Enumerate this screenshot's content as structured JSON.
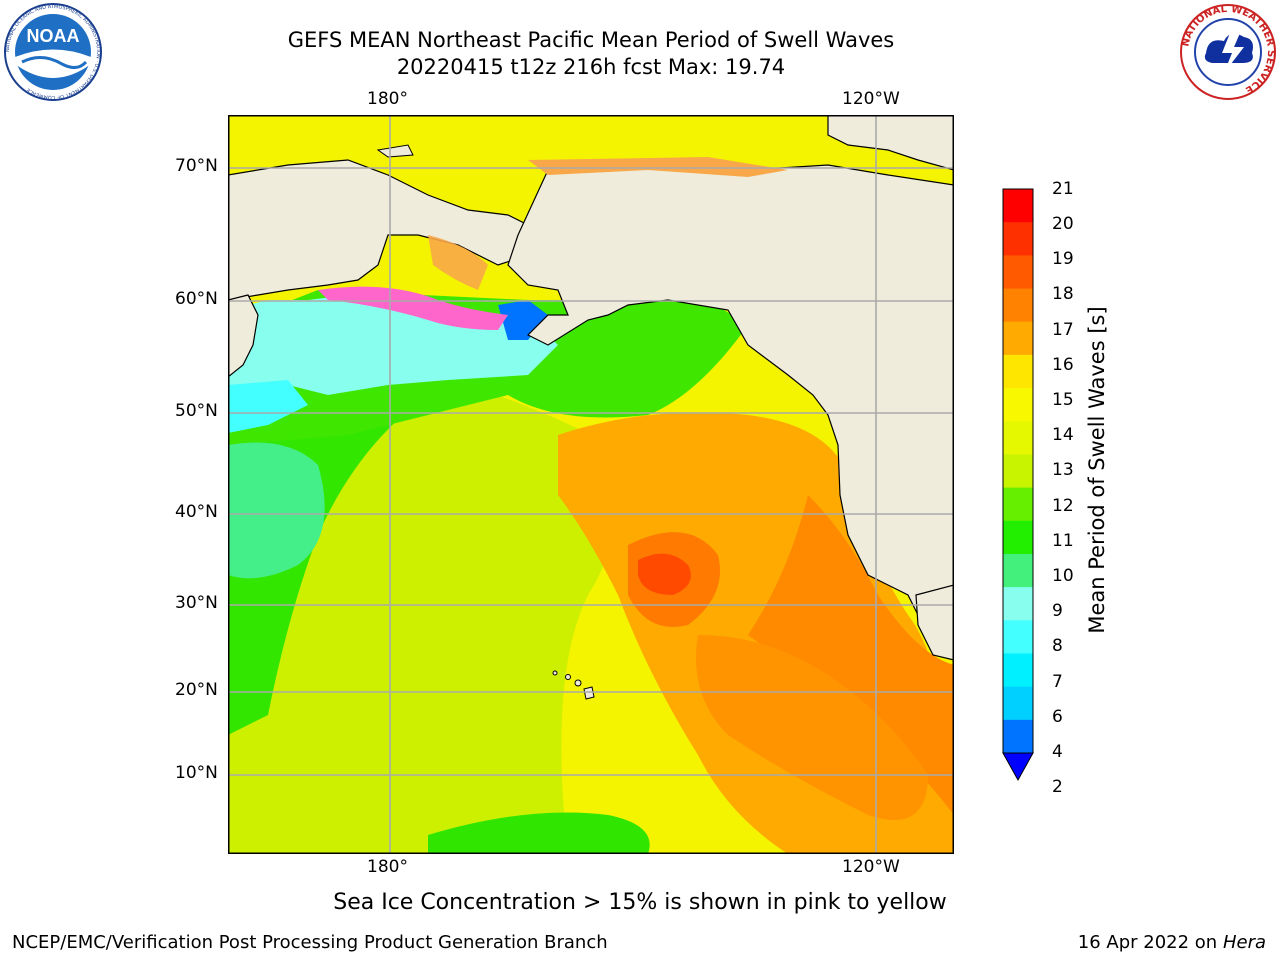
{
  "header": {
    "title_line1": "GEFS MEAN Northeast Pacific Mean Period of Swell Waves",
    "title_line2": "20220415 t12z 216h fcst   Max: 19.74"
  },
  "logos": {
    "noaa_text": "NOAA",
    "noaa_ring_text": "NATIONAL OCEANIC AND ATMOSPHERIC ADMINISTRATION · U.S. DEPARTMENT OF COMMERCE",
    "nws_ring_text": "NATIONAL WEATHER SERVICE"
  },
  "map": {
    "lon_labels_top": [
      "180°",
      "120°W"
    ],
    "lon_labels_bottom": [
      "180°",
      "120°W"
    ],
    "lat_labels": [
      "70°N",
      "60°N",
      "50°N",
      "40°N",
      "30°N",
      "20°N",
      "10°N"
    ],
    "max_value": 19.74,
    "colors": {
      "land": "#efecdc",
      "coast": "#000000",
      "grid": "#aaaaaa",
      "ice_pink": "#ff66cc",
      "ice_orange": "#f8a848"
    }
  },
  "colorbar": {
    "title": "Mean Period of Swell Waves [s]",
    "labels": [
      "21",
      "20",
      "19",
      "18",
      "17",
      "16",
      "15",
      "14",
      "13",
      "12",
      "11",
      "10",
      "9",
      "8",
      "7",
      "6",
      "4",
      "2"
    ],
    "bands_top_to_bottom": [
      "#ff0000",
      "#ff3000",
      "#ff5a00",
      "#ff8200",
      "#ffaa00",
      "#ffe600",
      "#f8f800",
      "#e6f800",
      "#c8f400",
      "#66f000",
      "#22ee00",
      "#44f07c",
      "#88ffee",
      "#44ffff",
      "#00f0ff",
      "#00d0ff",
      "#0074ff"
    ],
    "extend_color": "#0000ff"
  },
  "footer": {
    "note": "Sea Ice Concentration > 15% is shown in pink to yellow",
    "credit": "NCEP/EMC/Verification Post Processing Product Generation Branch",
    "date": "16 Apr 2022 on",
    "machine": "Hera"
  }
}
